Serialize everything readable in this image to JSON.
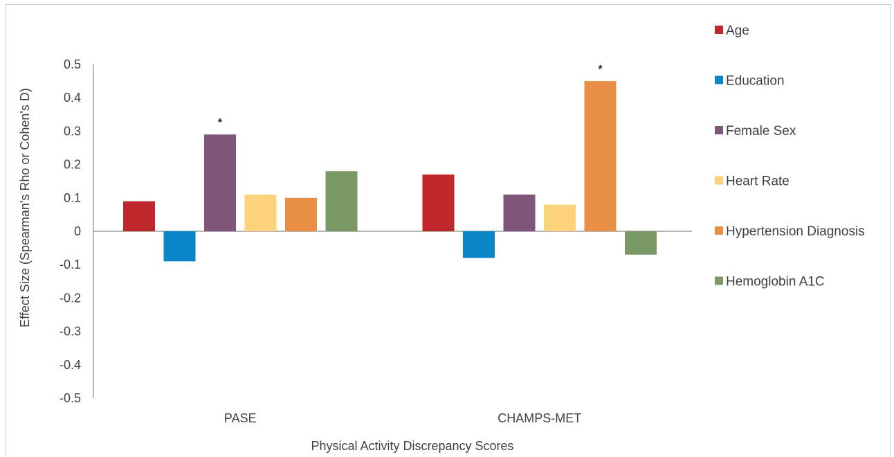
{
  "chart_data": {
    "type": "bar",
    "xlabel": "Physical Activity Discrepancy Scores",
    "ylabel": "Effect Size (Spearman's Rho or Cohen's D)",
    "ylim": [
      -0.5,
      0.5
    ],
    "yticks": [
      0.5,
      0.4,
      0.3,
      0.2,
      0.1,
      0,
      -0.1,
      -0.2,
      -0.3,
      -0.4,
      -0.5
    ],
    "grid": false,
    "legend_position": "right",
    "categories": [
      "PASE",
      "CHAMPS-MET"
    ],
    "series": [
      {
        "name": "Age",
        "color": "#c0272d",
        "values": [
          0.09,
          0.17
        ],
        "annotations": [
          "",
          ""
        ]
      },
      {
        "name": "Education",
        "color": "#0a85c7",
        "values": [
          -0.09,
          -0.08
        ],
        "annotations": [
          "",
          ""
        ]
      },
      {
        "name": "Female Sex",
        "color": "#80557a",
        "values": [
          0.29,
          0.11
        ],
        "annotations": [
          "*",
          ""
        ]
      },
      {
        "name": "Heart Rate",
        "color": "#fdd27c",
        "values": [
          0.11,
          0.08
        ],
        "annotations": [
          "",
          ""
        ]
      },
      {
        "name": "Hypertension Diagnosis",
        "color": "#e88e45",
        "values": [
          0.1,
          0.45
        ],
        "annotations": [
          "",
          "*"
        ]
      },
      {
        "name": "Hemoglobin A1C",
        "color": "#7a9865",
        "values": [
          0.18,
          -0.07
        ],
        "annotations": [
          "",
          ""
        ]
      }
    ]
  }
}
